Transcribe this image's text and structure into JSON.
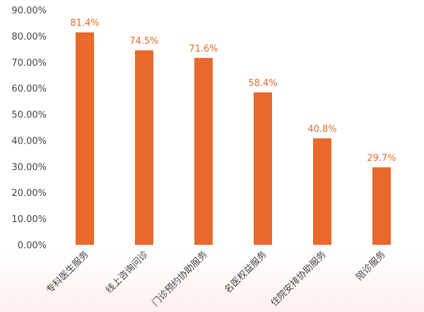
{
  "chart_data": {
    "type": "bar",
    "categories": [
      "专科医生服务",
      "线上咨询问诊",
      "门诊预约协助服务",
      "名医权益服务",
      "住院安排协助服务",
      "陪诊服务"
    ],
    "values": [
      81.4,
      74.5,
      71.6,
      58.4,
      40.8,
      29.7
    ],
    "data_labels": [
      "81.4%",
      "74.5%",
      "71.6%",
      "58.4%",
      "40.8%",
      "29.7%"
    ],
    "y_ticks": [
      0,
      10,
      20,
      30,
      40,
      50,
      60,
      70,
      80,
      90
    ],
    "y_tick_labels": [
      "0.00%",
      "10.00%",
      "20.00%",
      "30.00%",
      "40.00%",
      "50.00%",
      "60.00%",
      "70.00%",
      "80.00%",
      "90.00%"
    ],
    "ylim": [
      0,
      90
    ],
    "grid": false,
    "legend": "none",
    "bar_color": "#e8692a",
    "label_color": "#e8692a",
    "axis_text_color": "#444444",
    "title": "",
    "xlabel": "",
    "ylabel": ""
  }
}
